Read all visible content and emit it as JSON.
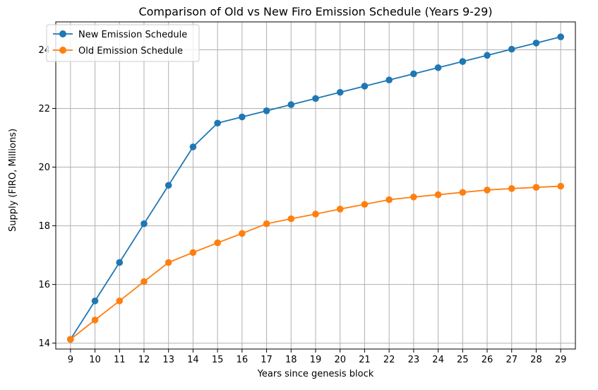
{
  "chart_data": {
    "type": "line",
    "title": "Comparison of Old vs New Firo Emission Schedule (Years 9-29)",
    "xlabel": "Years since genesis block",
    "ylabel": "Supply (FIRO, Millions)",
    "x": [
      9,
      10,
      11,
      12,
      13,
      14,
      15,
      16,
      17,
      18,
      19,
      20,
      21,
      22,
      23,
      24,
      25,
      26,
      27,
      28,
      29
    ],
    "xlim": [
      8.4,
      29.6
    ],
    "ylim": [
      13.8,
      24.95
    ],
    "yticks": [
      14,
      16,
      18,
      20,
      22,
      24
    ],
    "grid": true,
    "legend_position": "top-left",
    "series": [
      {
        "name": "New Emission Schedule",
        "color": "#1f77b4",
        "marker": "circle",
        "values": [
          14.13,
          15.44,
          16.75,
          18.07,
          19.38,
          20.69,
          21.5,
          21.71,
          21.92,
          22.13,
          22.34,
          22.55,
          22.76,
          22.97,
          23.18,
          23.39,
          23.6,
          23.81,
          24.02,
          24.23,
          24.44
        ]
      },
      {
        "name": "Old Emission Schedule",
        "color": "#ff7f0e",
        "marker": "circle",
        "values": [
          14.13,
          14.79,
          15.44,
          16.1,
          16.75,
          17.09,
          17.42,
          17.74,
          18.07,
          18.24,
          18.4,
          18.57,
          18.73,
          18.89,
          18.98,
          19.06,
          19.14,
          19.22,
          19.27,
          19.31,
          19.35
        ]
      }
    ]
  }
}
